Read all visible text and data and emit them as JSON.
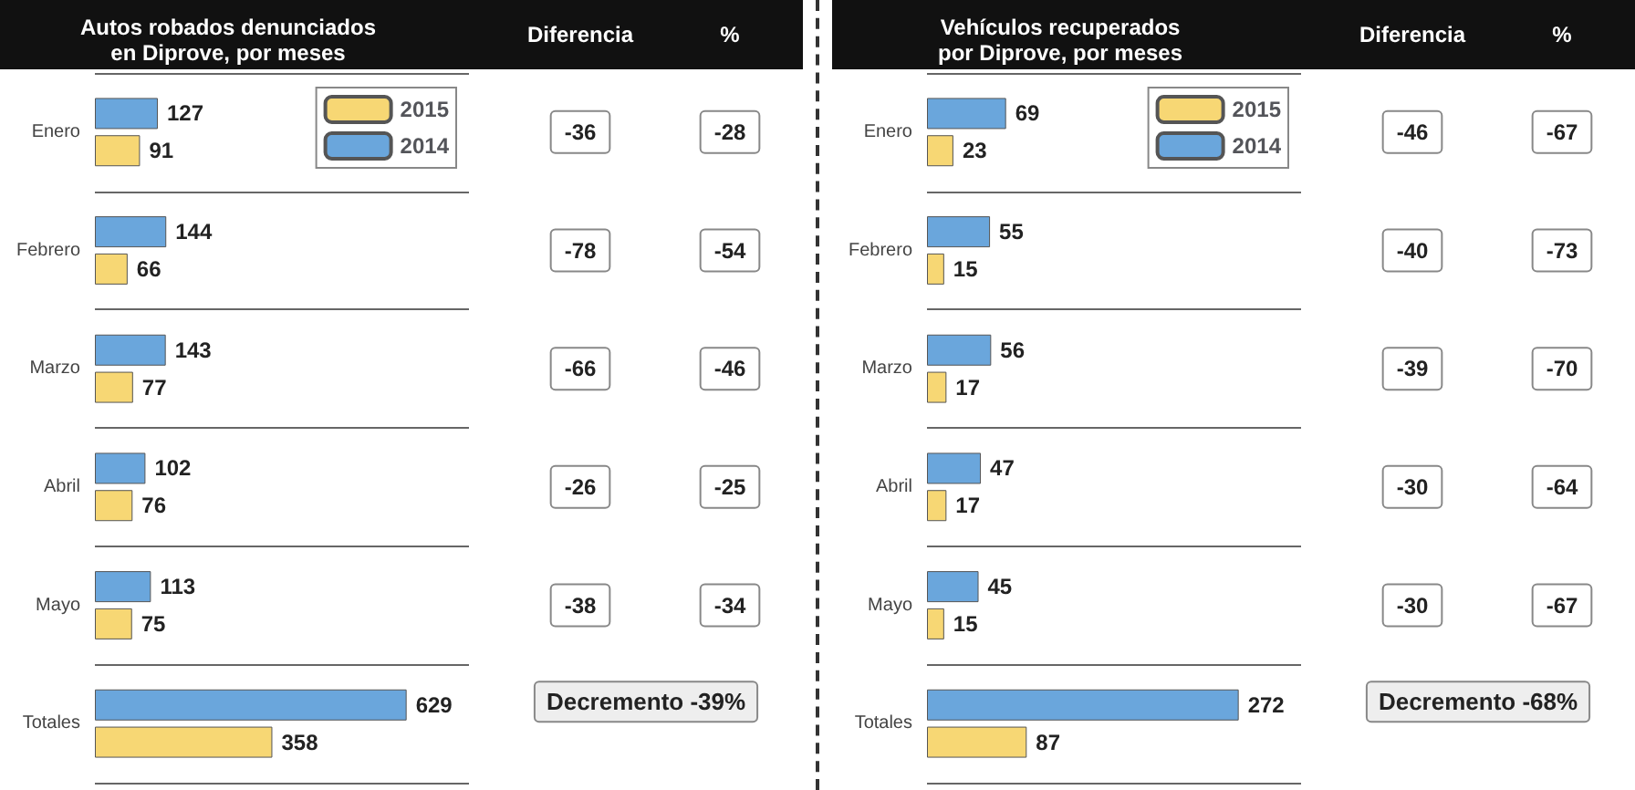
{
  "chart_data": [
    {
      "type": "bar",
      "orientation": "horizontal",
      "title": "Autos robados denunciados\nen Diprove, por meses",
      "categories": [
        "Enero",
        "Febrero",
        "Marzo",
        "Abril",
        "Mayo",
        "Totales"
      ],
      "series": [
        {
          "name": "2014",
          "color": "#6aa6dc",
          "values": [
            127,
            144,
            143,
            102,
            113,
            629
          ]
        },
        {
          "name": "2015",
          "color": "#f7d774",
          "values": [
            91,
            66,
            77,
            76,
            75,
            358
          ]
        }
      ],
      "data_labels": true,
      "legend": "top right",
      "grid": "y",
      "tick_labels": "y",
      "annotations": [
        "Diferencia",
        "%",
        "-36",
        "-28",
        "-78",
        "-54",
        "-66",
        "-46",
        "-26",
        "-25",
        "-38",
        "-34",
        "Decremento -39%"
      ]
    },
    {
      "type": "bar",
      "orientation": "horizontal",
      "title": "Vehículos recuperados\npor Diprove, por meses",
      "categories": [
        "Enero",
        "Febrero",
        "Marzo",
        "Abril",
        "Mayo",
        "Totales"
      ],
      "series": [
        {
          "name": "2014",
          "color": "#6aa6dc",
          "values": [
            69,
            55,
            56,
            47,
            45,
            272
          ]
        },
        {
          "name": "2015",
          "color": "#f7d774",
          "values": [
            23,
            15,
            17,
            17,
            15,
            87
          ]
        }
      ],
      "data_labels": true,
      "legend": "top right",
      "grid": "y",
      "tick_labels": "y",
      "annotations": [
        "Diferencia",
        "%",
        "-46",
        "-67",
        "-40",
        "-73",
        "-39",
        "-70",
        "-30",
        "-64",
        "-30",
        "-67",
        "Decremento -68%"
      ]
    }
  ]
}
